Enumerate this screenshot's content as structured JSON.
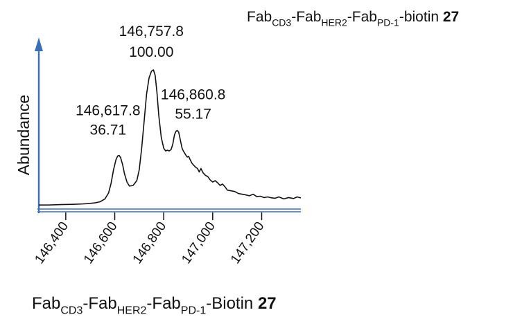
{
  "chart_data": {
    "type": "line",
    "title": {
      "parts": [
        {
          "text": "Fab",
          "sub": false
        },
        {
          "text": "CD3",
          "sub": true
        },
        {
          "text": "-Fab",
          "sub": false
        },
        {
          "text": "HER2",
          "sub": true
        },
        {
          "text": "-Fab",
          "sub": false
        },
        {
          "text": "PD-1",
          "sub": true
        },
        {
          "text": "-biotin ",
          "sub": false
        },
        {
          "text": "27",
          "sub": false,
          "bold": true
        }
      ]
    },
    "xlabel": {
      "parts": [
        {
          "text": "Fab",
          "sub": false
        },
        {
          "text": "CD3",
          "sub": true
        },
        {
          "text": "-Fab",
          "sub": false
        },
        {
          "text": "HER2",
          "sub": true
        },
        {
          "text": "-Fab",
          "sub": false
        },
        {
          "text": "PD-1",
          "sub": true
        },
        {
          "text": "-Biotin ",
          "sub": false
        },
        {
          "text": "27",
          "sub": false,
          "bold": true
        }
      ]
    },
    "ylabel": "Abundance",
    "xlim": [
      146290,
      147360
    ],
    "ylim": [
      -4,
      122
    ],
    "xticks": [
      146400,
      146600,
      146800,
      147000,
      147200
    ],
    "xtick_labels": [
      "146,400",
      "146,600",
      "146,800",
      "147,000",
      "147,200"
    ],
    "series": [
      {
        "x": [
          146290,
          146330,
          146380,
          146430,
          146470,
          146500,
          146520,
          146540,
          146560,
          146575,
          146585,
          146595,
          146605,
          146612,
          146618,
          146624,
          146632,
          146640,
          146650,
          146660,
          146675,
          146690,
          146700,
          146710,
          146720,
          146730,
          146740,
          146750,
          146758,
          146765,
          146772,
          146780,
          146790,
          146800,
          146808,
          146815,
          146822,
          146830,
          146837,
          146844,
          146850,
          146855,
          146861,
          146868,
          146875,
          146880,
          146885,
          146890,
          146896,
          146902,
          146908,
          146915,
          146922,
          146930,
          146938,
          146945,
          146952,
          146960,
          146970,
          146980,
          146990,
          147000,
          147010,
          147020,
          147030,
          147040,
          147050,
          147060,
          147075,
          147090,
          147105,
          147120,
          147135,
          147150,
          147165,
          147180,
          147195,
          147210,
          147225,
          147240,
          147255,
          147270,
          147290,
          147310,
          147330,
          147345,
          147360
        ],
        "y": [
          0.0,
          0.0,
          0.3,
          0.5,
          0.8,
          1.2,
          1.6,
          2.4,
          4.5,
          9.0,
          16.0,
          26.0,
          33.5,
          36.3,
          36.71,
          35.0,
          30.0,
          23.0,
          17.0,
          14.0,
          14.5,
          18.0,
          26.0,
          42.0,
          62.0,
          82.0,
          94.0,
          99.0,
          100.0,
          96.0,
          84.0,
          66.0,
          50.0,
          42.0,
          40.0,
          40.6,
          40.0,
          41.0,
          45.0,
          52.0,
          54.5,
          55.17,
          54.0,
          48.0,
          42.0,
          40.0,
          38.5,
          37.0,
          35.5,
          36.0,
          33.5,
          31.0,
          29.5,
          28.0,
          27.0,
          24.5,
          27.0,
          24.0,
          22.0,
          21.0,
          18.5,
          17.0,
          18.0,
          16.5,
          14.5,
          15.5,
          13.5,
          11.0,
          10.5,
          10.0,
          8.5,
          8.0,
          7.5,
          6.8,
          8.0,
          6.2,
          6.5,
          5.5,
          6.0,
          5.3,
          5.0,
          6.0,
          4.5,
          5.5,
          4.8,
          6.0,
          5.2
        ]
      }
    ],
    "peak_labels": [
      {
        "x": 146617.8,
        "y": 36.71,
        "mass": "146,617.8",
        "abundance": "36.71"
      },
      {
        "x": 146757.8,
        "y": 100.0,
        "mass": "146,757.8",
        "abundance": "100.00"
      },
      {
        "x": 146860.8,
        "y": 55.17,
        "mass": "146,860.8",
        "abundance": "55.17"
      }
    ],
    "colors": {
      "axis": "#3c6fb0",
      "trace": "#111111",
      "text": "#111111"
    },
    "grid": false
  }
}
